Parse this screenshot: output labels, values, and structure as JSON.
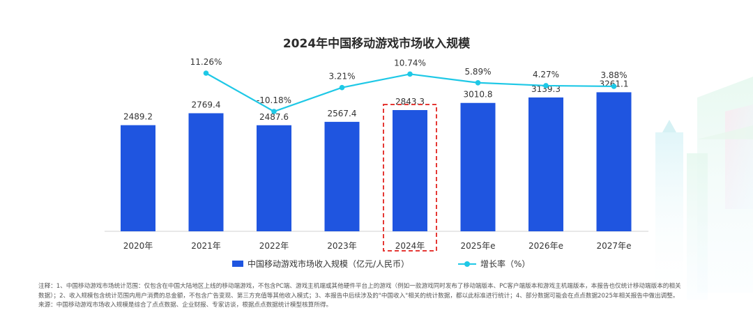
{
  "colors": {
    "bar": "#1f55e0",
    "line": "#1ec8e6",
    "highlight_box": "#e53935",
    "text": "#333333"
  },
  "chart_data": {
    "type": "bar",
    "title": "2024年中国移动游戏市场收入规模",
    "categories": [
      "2020年",
      "2021年",
      "2022年",
      "2023年",
      "2024年",
      "2025年e",
      "2026年e",
      "2027年e"
    ],
    "series": [
      {
        "name": "中国移动游戏市场收入规模（亿元/人民币）",
        "type": "bar",
        "values": [
          2489.2,
          2769.4,
          2487.6,
          2567.4,
          2843.3,
          3010.8,
          3139.3,
          3261.1
        ],
        "labels": [
          "2489.2",
          "2769.4",
          "2487.6",
          "2567.4",
          "2843.3",
          "3010.8",
          "3139.3",
          "3261.1"
        ]
      },
      {
        "name": "增长率（%）",
        "type": "line",
        "values": [
          null,
          11.26,
          -10.18,
          3.21,
          10.74,
          5.89,
          4.27,
          3.88
        ],
        "labels": [
          "",
          "11.26%",
          "-10.18%",
          "3.21%",
          "10.74%",
          "5.89%",
          "4.27%",
          "3.88%"
        ]
      }
    ],
    "highlight_category": "2024年",
    "grid": false,
    "legend_position": "bottom"
  },
  "notes": {
    "line1": "注释：1、中国移动游戏市场统计范围：仅包含在中国大陆地区上线的移动端游戏，不包含PC端、游戏主机端或其他硬件平台上的游戏（例如一款游戏同时发布了移动端版本、PC客户端版本和游戏主机端版本，本报告也仅统计移动端版本的相关",
    "line2": "数据）；2、收入规模包含统计范围内用户消费的总金额，不包含广告变现、第三方充值等其他收入模式；3、本报告中后续涉及的\"中国收入\"相关的统计数据，都以此标准进行统计；4、部分数据可能会在点点数据2025年相关报告中做出调整。",
    "line3": "来源：中国移动游戏市场收入规模是综合了点点数据、企业财报、专家访谈，根据点点数据统计模型核算所得。"
  }
}
